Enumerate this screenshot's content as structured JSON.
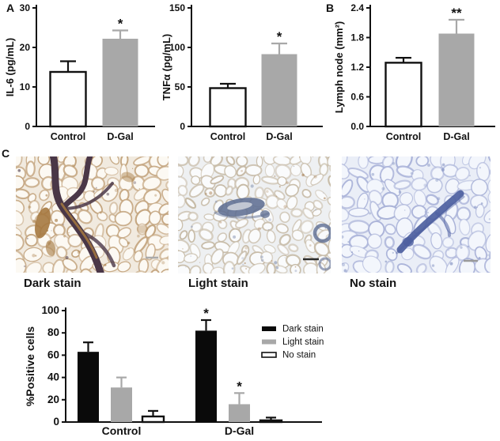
{
  "figure": {
    "panel_labels": {
      "a": "A",
      "b": "B",
      "c": "C"
    }
  },
  "colors": {
    "axis": "#111111",
    "bar_gray": "#a8a8a8",
    "bar_white": "#ffffff",
    "bar_black": "#0a0a0a"
  },
  "histology": {
    "items": [
      {
        "label": "Dark stain",
        "bg": "#f1eadf",
        "cell_border": "#c3a47e",
        "feature": "#4a3747",
        "accent": "#a5783f"
      },
      {
        "label": "Light stain",
        "bg": "#eef0f2",
        "cell_border": "#c6baa6",
        "feature": "#5d6d92",
        "accent": "#a97f52"
      },
      {
        "label": "No stain",
        "bg": "#eaeef7",
        "cell_border": "#a9b2d8",
        "feature": "#4d5fa0",
        "accent": "#7f8fc0"
      }
    ]
  },
  "chart_data": [
    {
      "id": "il6",
      "type": "bar",
      "panel": "A",
      "ylabel": "IL-6 (pg/mL)",
      "categories": [
        "Control",
        "D-Gal"
      ],
      "values": [
        13.8,
        22.2
      ],
      "errors": [
        2.7,
        2.1
      ],
      "significance": [
        "",
        "*"
      ],
      "bar_fills": [
        "#ffffff",
        "#a8a8a8"
      ],
      "ylim": [
        0,
        30
      ],
      "yticks": [
        0,
        10,
        20,
        30
      ]
    },
    {
      "id": "tnfa",
      "type": "bar",
      "panel": "A",
      "ylabel": "TNFα (pg/mL)",
      "categories": [
        "Control",
        "D-Gal"
      ],
      "values": [
        48.5,
        91.5
      ],
      "errors": [
        5.5,
        13.5
      ],
      "significance": [
        "",
        "*"
      ],
      "bar_fills": [
        "#ffffff",
        "#a8a8a8"
      ],
      "ylim": [
        0,
        150
      ],
      "yticks": [
        0,
        50,
        100,
        150
      ]
    },
    {
      "id": "lymph-node",
      "type": "bar",
      "panel": "B",
      "ylabel": "Lymph node (mm²)",
      "categories": [
        "Control",
        "D-Gal"
      ],
      "values": [
        1.29,
        1.88
      ],
      "errors": [
        0.1,
        0.28
      ],
      "significance": [
        "",
        "**"
      ],
      "bar_fills": [
        "#ffffff",
        "#a8a8a8"
      ],
      "ylim": [
        0,
        2.4
      ],
      "yticks": [
        0,
        0.6,
        1.2,
        1.8,
        2.4
      ],
      "ytick_labels": [
        "0.0",
        "0.6",
        "1.2",
        "1.8",
        "2.4"
      ]
    },
    {
      "id": "positive-cells",
      "type": "grouped-bar",
      "panel": "C",
      "ylabel": "%Positive cells",
      "categories": [
        "Control",
        "D-Gal"
      ],
      "series": [
        {
          "name": "Dark stain",
          "color": "#0a0a0a",
          "values": [
            63,
            82
          ],
          "errors": [
            8.5,
            9.5
          ],
          "significance": [
            "",
            "*"
          ]
        },
        {
          "name": "Light stain",
          "color": "#a8a8a8",
          "values": [
            31,
            16
          ],
          "errors": [
            9,
            10
          ],
          "significance": [
            "",
            "*"
          ]
        },
        {
          "name": "No stain",
          "color": "#ffffff",
          "values": [
            5,
            1.5
          ],
          "errors": [
            5,
            2.5
          ],
          "significance": [
            "",
            ""
          ]
        }
      ],
      "ylim": [
        0,
        100
      ],
      "yticks": [
        0,
        20,
        40,
        60,
        80,
        100
      ],
      "legend": [
        "Dark stain",
        "Light stain",
        "No stain"
      ],
      "legend_position": "right"
    }
  ]
}
